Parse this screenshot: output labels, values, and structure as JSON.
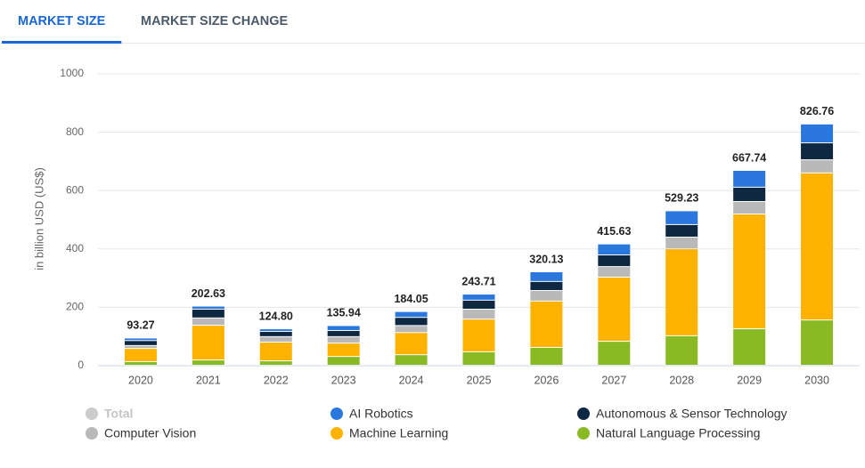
{
  "tabs": [
    "MARKET SIZE",
    "MARKET SIZE CHANGE"
  ],
  "active_tab": 0,
  "chart_data": {
    "type": "stacked_bar",
    "y_label": "in billion USD (US$)",
    "categories": [
      "2020",
      "2021",
      "2022",
      "2023",
      "2024",
      "2025",
      "2026",
      "2027",
      "2028",
      "2029",
      "2030"
    ],
    "ylim": [
      0,
      1000
    ],
    "yticks": [
      0,
      200,
      400,
      600,
      800,
      1000
    ],
    "grid": true,
    "series": [
      {
        "name": "Total",
        "color": "#cccccc",
        "visible": false,
        "values": [
          93.27,
          202.63,
          124.8,
          135.94,
          184.05,
          243.71,
          320.13,
          415.63,
          529.23,
          667.74,
          826.76
        ],
        "value_labels": [
          "93.27",
          "202.63",
          "124.80",
          "135.94",
          "184.05",
          "243.71",
          "320.13",
          "415.63",
          "529.23",
          "667.74",
          "826.76"
        ]
      },
      {
        "name": "AI Robotics",
        "color": "#2a78dd",
        "values": [
          8.77,
          10.63,
          8.8,
          16.94,
          20.05,
          20.71,
          33.13,
          37.63,
          47.23,
          57.74,
          64.76
        ]
      },
      {
        "name": "Autonomous & Sensor Technology",
        "color": "#0e2841",
        "values": [
          17,
          30,
          18,
          21,
          28,
          31,
          31,
          40,
          43,
          49,
          58
        ]
      },
      {
        "name": "Computer Vision",
        "color": "#b9b9b9",
        "values": [
          10,
          25,
          19,
          22,
          24,
          34,
          36,
          36,
          40,
          43,
          45
        ]
      },
      {
        "name": "Machine Learning",
        "color": "#ffb300",
        "values": [
          45,
          119,
          64,
          46,
          76,
          112,
          159,
          220,
          298,
          393,
          504
        ]
      },
      {
        "name": "Natural Language Processing",
        "color": "#89ba23",
        "values": [
          12.5,
          18,
          15,
          30,
          36,
          46,
          61,
          82,
          101,
          125,
          155
        ]
      }
    ]
  }
}
